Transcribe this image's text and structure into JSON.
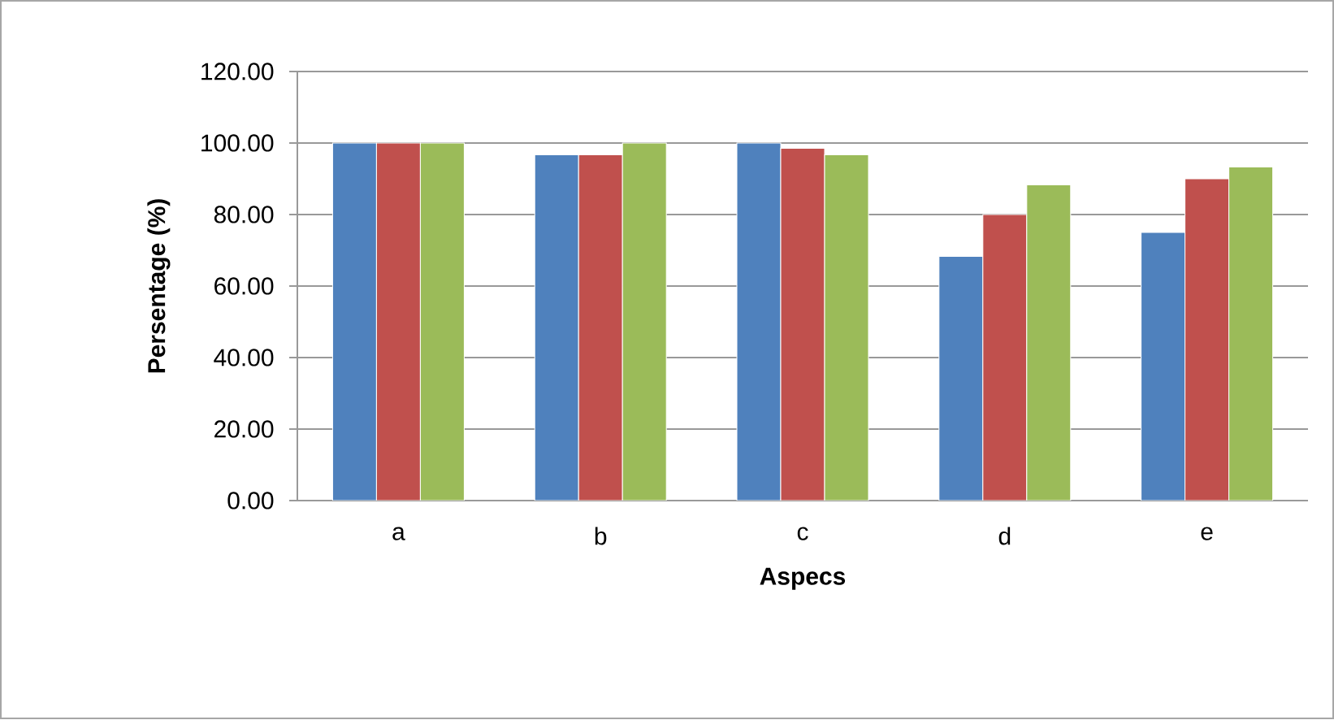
{
  "chart_data": {
    "type": "bar",
    "xlabel": "Aspecs",
    "ylabel": "Persentage (%)",
    "categories": [
      "a",
      "b",
      "c",
      "d",
      "e"
    ],
    "series": [
      {
        "color": "#4f81bd",
        "values": [
          100,
          96.7,
          100,
          68.3,
          75
        ]
      },
      {
        "color": "#c0504d",
        "values": [
          100,
          96.7,
          98.5,
          80,
          90
        ]
      },
      {
        "color": "#9bbb59",
        "values": [
          100,
          100,
          96.7,
          88.3,
          93.3
        ]
      }
    ],
    "ylim": [
      0,
      120
    ],
    "yticks": [
      {
        "value": 0,
        "label": "0.00"
      },
      {
        "value": 20,
        "label": "20.00"
      },
      {
        "value": 40,
        "label": "40.00"
      },
      {
        "value": 60,
        "label": "60.00"
      },
      {
        "value": 80,
        "label": "80.00"
      },
      {
        "value": 100,
        "label": "100.00"
      },
      {
        "value": 120,
        "label": "120.00"
      }
    ],
    "grid": "y"
  }
}
